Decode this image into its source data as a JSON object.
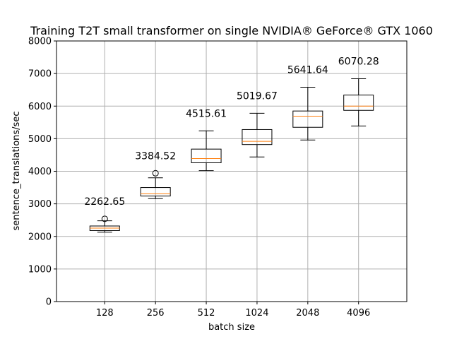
{
  "chart_data": {
    "type": "box",
    "title": "Training T2T small transformer on single NVIDIA® GeForce® GTX 1060",
    "xlabel": "batch size",
    "ylabel": "sentence_translations/sec",
    "ylim": [
      0,
      8000
    ],
    "yticks": [
      0,
      1000,
      2000,
      3000,
      4000,
      5000,
      6000,
      7000,
      8000
    ],
    "grid": true,
    "categories": [
      "128",
      "256",
      "512",
      "1024",
      "2048",
      "4096"
    ],
    "boxes": [
      {
        "category": "128",
        "whisker_low": 2130,
        "q1": 2180,
        "median": 2255,
        "q3": 2320,
        "whisker_high": 2480,
        "outliers": [
          2540
        ],
        "annotation": "2262.65"
      },
      {
        "category": "256",
        "whisker_low": 3160,
        "q1": 3240,
        "median": 3310,
        "q3": 3500,
        "whisker_high": 3800,
        "outliers": [
          3940
        ],
        "annotation": "3384.52"
      },
      {
        "category": "512",
        "whisker_low": 4020,
        "q1": 4260,
        "median": 4390,
        "q3": 4680,
        "whisker_high": 5240,
        "outliers": [],
        "annotation": "4515.61"
      },
      {
        "category": "1024",
        "whisker_low": 4440,
        "q1": 4820,
        "median": 4920,
        "q3": 5280,
        "whisker_high": 5780,
        "outliers": [],
        "annotation": "5019.67"
      },
      {
        "category": "2048",
        "whisker_low": 4960,
        "q1": 5350,
        "median": 5690,
        "q3": 5850,
        "whisker_high": 6580,
        "outliers": [],
        "annotation": "5641.64"
      },
      {
        "category": "4096",
        "whisker_low": 5390,
        "q1": 5870,
        "median": 6000,
        "q3": 6340,
        "whisker_high": 6840,
        "outliers": [],
        "annotation": "6070.28"
      }
    ],
    "colors": {
      "box": "#000000",
      "median": "#ff7f0e",
      "grid": "#b0b0b0"
    }
  }
}
